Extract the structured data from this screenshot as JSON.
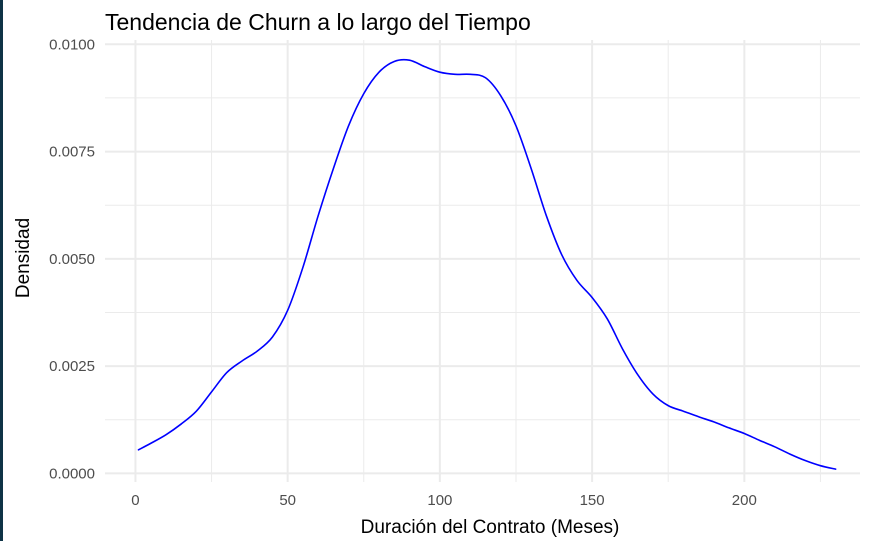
{
  "chart_data": {
    "type": "line",
    "title": "Tendencia de Churn a lo largo del Tiempo",
    "xlabel": "Duración del Contrato (Meses)",
    "ylabel": "Densidad",
    "xlim": [
      -10,
      238
    ],
    "ylim": [
      -0.0002,
      0.0101
    ],
    "x_ticks": [
      0,
      50,
      100,
      150,
      200
    ],
    "x_tick_labels": [
      "0",
      "50",
      "100",
      "150",
      "200"
    ],
    "x_minor_ticks": [
      25,
      75,
      125,
      175,
      225
    ],
    "y_ticks": [
      0.0,
      0.0025,
      0.005,
      0.0075,
      0.01
    ],
    "y_tick_labels": [
      "0.0000",
      "0.0025",
      "0.0050",
      "0.0075",
      "0.0100"
    ],
    "y_minor_ticks": [
      0.00125,
      0.00375,
      0.00625,
      0.00875
    ],
    "grid": true,
    "line_color": "#0000ff",
    "grid_color": "#ebebeb",
    "series": [
      {
        "x": [
          1,
          5,
          10,
          15,
          20,
          25,
          30,
          35,
          40,
          45,
          50,
          55,
          60,
          65,
          70,
          75,
          80,
          85,
          90,
          95,
          100,
          105,
          110,
          115,
          120,
          125,
          130,
          135,
          140,
          145,
          150,
          155,
          160,
          165,
          170,
          175,
          180,
          185,
          190,
          195,
          200,
          205,
          210,
          215,
          220,
          225,
          230
        ],
        "y": [
          0.00055,
          0.0007,
          0.0009,
          0.00115,
          0.00145,
          0.0019,
          0.00235,
          0.00262,
          0.00285,
          0.00318,
          0.0038,
          0.0048,
          0.006,
          0.0071,
          0.0081,
          0.00885,
          0.00935,
          0.0096,
          0.00963,
          0.00948,
          0.00935,
          0.0093,
          0.0093,
          0.00922,
          0.0088,
          0.0081,
          0.0071,
          0.006,
          0.0051,
          0.0045,
          0.0041,
          0.0036,
          0.0029,
          0.0023,
          0.00185,
          0.00158,
          0.00145,
          0.00132,
          0.0012,
          0.00106,
          0.00093,
          0.00077,
          0.00062,
          0.00045,
          0.0003,
          0.00018,
          0.0001
        ]
      }
    ]
  }
}
